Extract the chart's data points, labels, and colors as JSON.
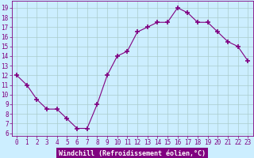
{
  "x": [
    0,
    1,
    2,
    3,
    4,
    5,
    6,
    7,
    8,
    9,
    10,
    11,
    12,
    13,
    14,
    15,
    16,
    17,
    18,
    19,
    20,
    21,
    22,
    23
  ],
  "y": [
    12,
    11,
    9.5,
    8.5,
    8.5,
    7.5,
    6.5,
    6.5,
    9.0,
    12.0,
    14.0,
    14.5,
    16.5,
    17.0,
    17.5,
    17.5,
    19.0,
    18.5,
    17.5,
    17.5,
    16.5,
    15.5,
    15.0,
    13.5
  ],
  "line_color": "#800080",
  "marker": "+",
  "marker_size": 4,
  "marker_lw": 1.2,
  "bg_color": "#cceeff",
  "grid_color": "#aacccc",
  "xlabel": "Windchill (Refroidissement éolien,°C)",
  "ytick_labels": [
    "6",
    "7",
    "8",
    "9",
    "10",
    "11",
    "12",
    "13",
    "14",
    "15",
    "16",
    "17",
    "18",
    "19"
  ],
  "ytick_vals": [
    6,
    7,
    8,
    9,
    10,
    11,
    12,
    13,
    14,
    15,
    16,
    17,
    18,
    19
  ],
  "xlim": [
    -0.5,
    23.5
  ],
  "ylim": [
    5.7,
    19.7
  ],
  "xlabel_color": "#ffffff",
  "xlabel_bg": "#800080",
  "tick_fontsize": 5.5,
  "xlabel_fontsize": 6.0
}
